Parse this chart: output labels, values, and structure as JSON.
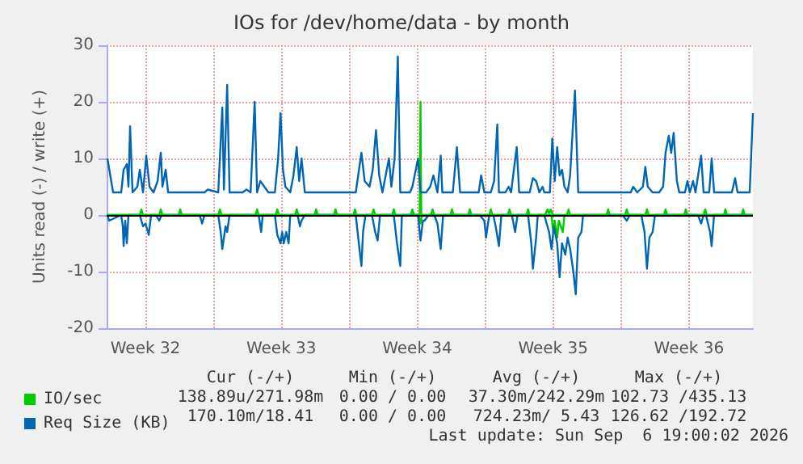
{
  "chart_data": {
    "type": "line",
    "title": "IOs for /dev/home/data - by month",
    "ylabel": "Units read (-) / write (+)",
    "xlim": [
      "2026-08-04T12:00",
      "2026-09-06T19:00"
    ],
    "xticks": [
      {
        "value": "2026-08-06T12:00",
        "label": "Week 32"
      },
      {
        "value": "2026-08-10T00:00",
        "label": null
      },
      {
        "value": "2026-08-13T12:00",
        "label": "Week 33"
      },
      {
        "value": "2026-08-17T00:00",
        "label": null
      },
      {
        "value": "2026-08-20T12:00",
        "label": "Week 34"
      },
      {
        "value": "2026-08-24T00:00",
        "label": null
      },
      {
        "value": "2026-08-27T12:00",
        "label": "Week 35"
      },
      {
        "value": "2026-08-31T00:00",
        "label": null
      },
      {
        "value": "2026-09-03T12:00",
        "label": "Week 36"
      }
    ],
    "ref_lines": [
      {
        "axis": "y",
        "value": 0,
        "color": "#000000"
      }
    ],
    "ylim": [
      -20,
      30
    ],
    "yticks": [
      -20,
      -10,
      0,
      10,
      20,
      30
    ],
    "grid": true,
    "legend": "bottom left",
    "series": [
      {
        "name": "IO/sec",
        "color": "#00cc00",
        "x": [
          "2026-08-04T12:00",
          "2026-08-06T05:00",
          "2026-08-06T07:00",
          "2026-08-06T09:00",
          "2026-08-07T05:00",
          "2026-08-07T07:00",
          "2026-08-07T09:00",
          "2026-08-08T05:00",
          "2026-08-08T07:00",
          "2026-08-08T09:00",
          "2026-08-10T06:00",
          "2026-08-10T08:00",
          "2026-08-10T10:00",
          "2026-08-12T04:00",
          "2026-08-12T06:00",
          "2026-08-12T08:00",
          "2026-08-13T05:00",
          "2026-08-13T07:00",
          "2026-08-13T09:00",
          "2026-08-14T05:00",
          "2026-08-14T07:00",
          "2026-08-14T09:00",
          "2026-08-15T05:00",
          "2026-08-15T07:00",
          "2026-08-15T09:00",
          "2026-08-16T05:00",
          "2026-08-16T07:00",
          "2026-08-16T09:00",
          "2026-08-17T05:00",
          "2026-08-17T07:00",
          "2026-08-17T09:00",
          "2026-08-18T04:00",
          "2026-08-18T06:00",
          "2026-08-18T08:00",
          "2026-08-19T05:00",
          "2026-08-19T07:00",
          "2026-08-19T09:00",
          "2026-08-20T04:00",
          "2026-08-20T06:00",
          "2026-08-20T08:00",
          "2026-08-20T15:00",
          "2026-08-20T16:00",
          "2026-08-20T17:00",
          "2026-08-21T05:00",
          "2026-08-21T07:00",
          "2026-08-21T09:00",
          "2026-08-22T05:00",
          "2026-08-22T07:00",
          "2026-08-22T09:00",
          "2026-08-23T03:00",
          "2026-08-23T05:00",
          "2026-08-23T07:00",
          "2026-08-24T05:00",
          "2026-08-24T07:00",
          "2026-08-24T09:00",
          "2026-08-25T04:00",
          "2026-08-25T06:00",
          "2026-08-25T08:00",
          "2026-08-26T03:00",
          "2026-08-26T05:00",
          "2026-08-26T07:00",
          "2026-08-27T02:00",
          "2026-08-27T05:00",
          "2026-08-27T07:00",
          "2026-08-27T09:00",
          "2026-08-27T12:00",
          "2026-08-28T05:00",
          "2026-08-28T07:00",
          "2026-08-28T09:00",
          "2026-08-30T06:00",
          "2026-08-30T08:00",
          "2026-08-30T10:00",
          "2026-08-31T05:00",
          "2026-08-31T07:00",
          "2026-08-31T09:00",
          "2026-09-01T06:00",
          "2026-09-01T08:00",
          "2026-09-01T10:00",
          "2026-09-02T05:00",
          "2026-09-02T07:00",
          "2026-09-02T09:00",
          "2026-09-03T06:00",
          "2026-09-03T08:00",
          "2026-09-03T10:00",
          "2026-09-04T06:00",
          "2026-09-04T08:00",
          "2026-09-04T10:00",
          "2026-09-05T07:00",
          "2026-09-05T09:00",
          "2026-09-05T11:00",
          "2026-09-06T05:00",
          "2026-09-06T07:00",
          "2026-09-06T09:00",
          "2026-09-06T19:00"
        ],
        "values": [
          0,
          0,
          1,
          0,
          0,
          1,
          0,
          0,
          1,
          0,
          0,
          1,
          0,
          0,
          1,
          0,
          0,
          1,
          0,
          0,
          1,
          0,
          0,
          1,
          0,
          0,
          1,
          0,
          0,
          1,
          0,
          0,
          1,
          0,
          0,
          1,
          0,
          0,
          1,
          0,
          0,
          20,
          0,
          0,
          1,
          0,
          0,
          1,
          0,
          0,
          1,
          0,
          0,
          1,
          0,
          0,
          1,
          0,
          0,
          1,
          0,
          0,
          1,
          0.3,
          1,
          0,
          0,
          1,
          0,
          0,
          1,
          0,
          0,
          1,
          0,
          0,
          1,
          0,
          0,
          1,
          0,
          0,
          1,
          0,
          0,
          1,
          0,
          0,
          1,
          0,
          0,
          1,
          0,
          0
        ]
      },
      {
        "color": "#00cc00",
        "x": [
          "2026-08-04T12:00",
          "2026-08-20T14:00",
          "2026-08-20T16:00",
          "2026-08-20T18:00",
          "2026-08-27T10:00",
          "2026-08-27T12:00",
          "2026-08-27T14:00",
          "2026-08-27T17:00",
          "2026-08-27T19:00",
          "2026-08-28T00:00",
          "2026-08-28T02:00",
          "2026-09-06T19:00"
        ],
        "values": [
          0,
          0,
          -1.5,
          0,
          0,
          -3,
          -1,
          -4,
          -1,
          -3,
          0,
          0
        ]
      },
      {
        "name": "Req Size (KB)",
        "color": "#0066b3",
        "x": [
          "2026-08-04T13:00",
          "2026-08-04T20:00",
          "2026-08-05T06:00",
          "2026-08-05T09:00",
          "2026-08-05T13:00",
          "2026-08-05T15:00",
          "2026-08-05T17:00",
          "2026-08-05T20:00",
          "2026-08-06T02:00",
          "2026-08-06T05:00",
          "2026-08-06T09:00",
          "2026-08-06T13:00",
          "2026-08-06T17:00",
          "2026-08-06T22:00",
          "2026-08-07T03:00",
          "2026-08-07T07:00",
          "2026-08-07T09:00",
          "2026-08-07T13:00",
          "2026-08-07T16:00",
          "2026-08-09T13:00",
          "2026-08-09T17:00",
          "2026-08-10T06:00",
          "2026-08-10T11:00",
          "2026-08-10T13:00",
          "2026-08-10T17:00",
          "2026-08-10T20:00",
          "2026-08-11T12:00",
          "2026-08-11T17:00",
          "2026-08-11T22:00",
          "2026-08-12T03:00",
          "2026-08-12T06:00",
          "2026-08-12T10:00",
          "2026-08-12T15:00",
          "2026-08-12T20:00",
          "2026-08-13T04:00",
          "2026-08-13T08:00",
          "2026-08-13T11:00",
          "2026-08-13T14:00",
          "2026-08-13T17:00",
          "2026-08-13T23:00",
          "2026-08-14T03:00",
          "2026-08-14T07:00",
          "2026-08-14T10:00",
          "2026-08-14T13:00",
          "2026-08-14T17:00",
          "2026-08-17T08:00",
          "2026-08-17T12:00",
          "2026-08-17T15:00",
          "2026-08-17T19:00",
          "2026-08-18T01:00",
          "2026-08-18T05:00",
          "2026-08-18T09:00",
          "2026-08-18T13:00",
          "2026-08-18T17:00",
          "2026-08-19T01:00",
          "2026-08-19T04:00",
          "2026-08-19T08:00",
          "2026-08-19T12:00",
          "2026-08-19T15:00",
          "2026-08-20T03:00",
          "2026-08-20T06:00",
          "2026-08-20T13:00",
          "2026-08-20T16:00",
          "2026-08-20T23:00",
          "2026-08-21T04:00",
          "2026-08-21T08:00",
          "2026-08-21T13:00",
          "2026-08-21T17:00",
          "2026-08-21T19:00",
          "2026-08-22T08:00",
          "2026-08-22T13:00",
          "2026-08-22T17:00",
          "2026-08-23T16:00",
          "2026-08-23T19:00",
          "2026-08-23T23:00",
          "2026-08-24T07:00",
          "2026-08-24T11:00",
          "2026-08-24T15:00",
          "2026-08-24T17:00",
          "2026-08-25T01:00",
          "2026-08-25T05:00",
          "2026-08-25T08:00",
          "2026-08-25T15:00",
          "2026-08-25T18:00",
          "2026-08-26T07:00",
          "2026-08-26T11:00",
          "2026-08-26T15:00",
          "2026-08-26T19:00",
          "2026-08-26T23:00",
          "2026-08-27T01:00",
          "2026-08-27T08:00",
          "2026-08-27T11:00",
          "2026-08-27T14:00",
          "2026-08-27T17:00",
          "2026-08-27T20:00",
          "2026-08-27T23:00",
          "2026-08-28T02:00",
          "2026-08-28T06:00",
          "2026-08-28T09:00",
          "2026-08-28T15:00",
          "2026-08-28T19:00",
          "2026-08-30T23:00",
          "2026-08-31T12:00",
          "2026-08-31T15:00",
          "2026-08-31T20:00",
          "2026-09-01T03:00",
          "2026-09-01T06:00",
          "2026-09-01T09:00",
          "2026-09-01T15:00",
          "2026-09-01T23:00",
          "2026-09-02T04:00",
          "2026-09-02T07:00",
          "2026-09-02T11:00",
          "2026-09-02T14:00",
          "2026-09-02T17:00",
          "2026-09-02T21:00",
          "2026-09-03T00:00",
          "2026-09-03T07:00",
          "2026-09-03T10:00",
          "2026-09-03T13:00",
          "2026-09-03T17:00",
          "2026-09-03T20:00",
          "2026-09-04T03:00",
          "2026-09-04T06:00",
          "2026-09-04T13:00",
          "2026-09-04T16:00",
          "2026-09-04T19:00",
          "2026-09-05T17:00",
          "2026-09-05T21:00",
          "2026-09-06T00:00",
          "2026-09-06T15:00",
          "2026-09-06T19:00"
        ],
        "values": [
          10,
          4,
          4,
          8,
          9,
          5,
          15.7,
          4,
          5,
          8,
          4,
          10.5,
          5,
          4,
          6,
          11,
          5,
          8,
          4,
          4,
          4.5,
          4,
          19,
          4.5,
          23,
          4,
          4,
          4.5,
          4,
          20,
          4,
          6,
          5,
          4,
          4,
          10,
          18,
          8,
          5,
          4,
          7,
          12,
          6,
          10,
          4,
          4,
          8,
          11,
          6,
          5,
          8,
          15,
          7,
          4,
          10,
          5,
          10,
          28,
          4,
          4,
          5,
          10,
          4,
          4,
          5,
          7,
          4,
          10.5,
          4,
          4,
          12,
          4,
          4,
          7,
          4,
          4,
          6,
          16,
          4,
          4,
          5,
          4,
          12,
          4,
          4,
          6.5,
          6,
          4,
          5,
          4,
          4,
          13.5,
          6,
          12,
          7,
          8,
          5,
          4,
          7,
          22,
          4,
          4,
          4,
          5,
          4,
          5,
          8.5,
          5,
          4,
          4,
          5,
          11,
          14,
          11,
          14.5,
          6,
          4,
          4,
          6,
          4,
          6,
          4,
          10.5,
          4,
          4,
          10,
          4,
          4,
          6.5,
          4,
          4,
          18
        ]
      },
      {
        "color": "#0066b3",
        "x": [
          "2026-08-04T13:00",
          "2026-08-04T15:00",
          "2026-08-05T06:00",
          "2026-08-05T08:00",
          "2026-08-05T09:00",
          "2026-08-05T11:00",
          "2026-08-05T13:00",
          "2026-08-05T15:00",
          "2026-08-06T05:00",
          "2026-08-06T09:00",
          "2026-08-06T12:00",
          "2026-08-06T16:00",
          "2026-08-06T19:00",
          "2026-08-07T01:00",
          "2026-08-07T05:00",
          "2026-08-07T08:00",
          "2026-08-09T07:00",
          "2026-08-09T10:00",
          "2026-08-09T13:00",
          "2026-08-10T06:00",
          "2026-08-10T09:00",
          "2026-08-10T11:00",
          "2026-08-10T15:00",
          "2026-08-10T17:00",
          "2026-08-10T20:00",
          "2026-08-12T08:00",
          "2026-08-12T11:00",
          "2026-08-12T13:00",
          "2026-08-13T04:00",
          "2026-08-13T07:00",
          "2026-08-13T11:00",
          "2026-08-13T13:00",
          "2026-08-13T15:00",
          "2026-08-13T18:00",
          "2026-08-13T21:00",
          "2026-08-13T23:00",
          "2026-08-14T08:00",
          "2026-08-14T11:00",
          "2026-08-14T13:00",
          "2026-08-14T17:00",
          "2026-08-17T08:00",
          "2026-08-17T11:00",
          "2026-08-17T15:00",
          "2026-08-17T17:00",
          "2026-08-17T20:00",
          "2026-08-18T04:00",
          "2026-08-18T08:00",
          "2026-08-18T11:00",
          "2026-08-18T14:00",
          "2026-08-19T07:00",
          "2026-08-19T11:00",
          "2026-08-19T15:00",
          "2026-08-19T17:00",
          "2026-08-20T13:00",
          "2026-08-20T16:00",
          "2026-08-20T19:00",
          "2026-08-20T21:00",
          "2026-08-21T02:00",
          "2026-08-21T09:00",
          "2026-08-21T13:00",
          "2026-08-21T17:00",
          "2026-08-21T20:00",
          "2026-08-23T17:00",
          "2026-08-23T23:00",
          "2026-08-24T01:00",
          "2026-08-24T05:00",
          "2026-08-24T10:00",
          "2026-08-24T13:00",
          "2026-08-24T17:00",
          "2026-08-24T20:00",
          "2026-08-25T09:00",
          "2026-08-25T13:00",
          "2026-08-25T16:00",
          "2026-08-26T05:00",
          "2026-08-26T09:00",
          "2026-08-26T11:00",
          "2026-08-26T15:00",
          "2026-08-26T17:00",
          "2026-08-27T01:00",
          "2026-08-27T07:00",
          "2026-08-27T10:00",
          "2026-08-27T13:00",
          "2026-08-27T17:00",
          "2026-08-27T20:00",
          "2026-08-27T23:00",
          "2026-08-28T03:00",
          "2026-08-28T06:00",
          "2026-08-28T09:00",
          "2026-08-28T13:00",
          "2026-08-28T16:00",
          "2026-08-28T19:00",
          "2026-08-28T23:00",
          "2026-08-29T01:00",
          "2026-08-31T02:00",
          "2026-08-31T07:00",
          "2026-08-31T11:00",
          "2026-09-01T01:00",
          "2026-09-01T05:00",
          "2026-09-01T08:00",
          "2026-09-01T11:00",
          "2026-09-01T15:00",
          "2026-09-01T18:00",
          "2026-09-03T23:00",
          "2026-09-04T03:00",
          "2026-09-04T06:00",
          "2026-09-04T09:00",
          "2026-09-04T14:00",
          "2026-09-04T16:00",
          "2026-09-04T19:00",
          "2026-09-06T19:00"
        ],
        "values": [
          0,
          -1,
          0,
          -2,
          -5.5,
          -1,
          -5,
          0,
          0,
          -2,
          -1.5,
          -3.5,
          0,
          0,
          -1,
          0,
          0,
          -1.5,
          0,
          0,
          -3,
          -6,
          -2,
          -3,
          0,
          0,
          -3,
          0,
          0,
          -3.5,
          -5,
          -3,
          -5,
          -3,
          -5,
          0,
          0,
          -2,
          -1,
          0,
          0,
          -4,
          -9,
          -3,
          0,
          0,
          -3,
          -4.5,
          0,
          0,
          -5,
          -9,
          0,
          0,
          -4.5,
          -1,
          -1,
          0,
          0,
          -1.5,
          -6,
          0,
          0,
          -1,
          -4,
          0,
          0,
          -2,
          -5.5,
          0,
          0,
          -3,
          0,
          0,
          -5,
          -9.5,
          -4,
          0,
          0,
          -3,
          -6,
          -2,
          -5,
          -11,
          -5,
          -7,
          -4,
          -6,
          -10,
          -14,
          -4,
          -3,
          0,
          0,
          -1,
          0,
          0,
          -3,
          -9.5,
          -4,
          -3,
          0,
          0,
          -1.5,
          0,
          0,
          -3,
          -5.5,
          0,
          0
        ]
      }
    ],
    "annotations": [
      "Cur (-/+)",
      "Min (-/+)",
      "Avg (-/+)",
      "Max (-/+)",
      "138.89u/271.98m",
      "0.00 / 0.00",
      "37.30m/242.29m",
      "102.73 /435.13",
      "170.10m/18.41",
      "0.00 / 0.00",
      "724.23m/ 5.43",
      "126.62 /192.72",
      "Last update: Sun Sep  6 19:00:02 2026"
    ]
  }
}
